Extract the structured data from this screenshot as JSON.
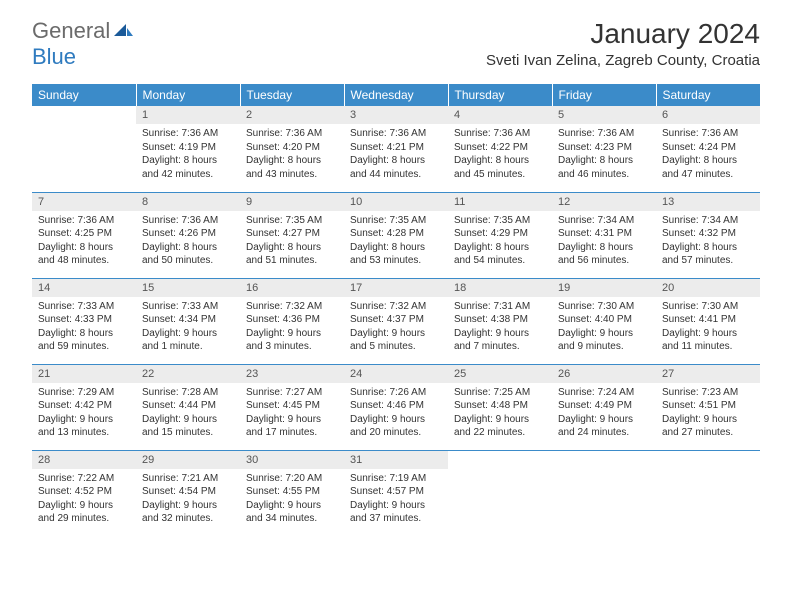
{
  "logo": {
    "general": "General",
    "blue": "Blue"
  },
  "title": "January 2024",
  "location": "Sveti Ivan Zelina, Zagreb County, Croatia",
  "colors": {
    "header_bg": "#3b8bc9",
    "header_text": "#ffffff",
    "daynum_bg": "#ececec",
    "border": "#3b8bc9",
    "text": "#333333",
    "logo_gray": "#6b6b6b",
    "logo_blue": "#2f7bbf"
  },
  "weekdays": [
    "Sunday",
    "Monday",
    "Tuesday",
    "Wednesday",
    "Thursday",
    "Friday",
    "Saturday"
  ],
  "weeks": [
    [
      null,
      {
        "n": "1",
        "sr": "Sunrise: 7:36 AM",
        "ss": "Sunset: 4:19 PM",
        "d1": "Daylight: 8 hours",
        "d2": "and 42 minutes."
      },
      {
        "n": "2",
        "sr": "Sunrise: 7:36 AM",
        "ss": "Sunset: 4:20 PM",
        "d1": "Daylight: 8 hours",
        "d2": "and 43 minutes."
      },
      {
        "n": "3",
        "sr": "Sunrise: 7:36 AM",
        "ss": "Sunset: 4:21 PM",
        "d1": "Daylight: 8 hours",
        "d2": "and 44 minutes."
      },
      {
        "n": "4",
        "sr": "Sunrise: 7:36 AM",
        "ss": "Sunset: 4:22 PM",
        "d1": "Daylight: 8 hours",
        "d2": "and 45 minutes."
      },
      {
        "n": "5",
        "sr": "Sunrise: 7:36 AM",
        "ss": "Sunset: 4:23 PM",
        "d1": "Daylight: 8 hours",
        "d2": "and 46 minutes."
      },
      {
        "n": "6",
        "sr": "Sunrise: 7:36 AM",
        "ss": "Sunset: 4:24 PM",
        "d1": "Daylight: 8 hours",
        "d2": "and 47 minutes."
      }
    ],
    [
      {
        "n": "7",
        "sr": "Sunrise: 7:36 AM",
        "ss": "Sunset: 4:25 PM",
        "d1": "Daylight: 8 hours",
        "d2": "and 48 minutes."
      },
      {
        "n": "8",
        "sr": "Sunrise: 7:36 AM",
        "ss": "Sunset: 4:26 PM",
        "d1": "Daylight: 8 hours",
        "d2": "and 50 minutes."
      },
      {
        "n": "9",
        "sr": "Sunrise: 7:35 AM",
        "ss": "Sunset: 4:27 PM",
        "d1": "Daylight: 8 hours",
        "d2": "and 51 minutes."
      },
      {
        "n": "10",
        "sr": "Sunrise: 7:35 AM",
        "ss": "Sunset: 4:28 PM",
        "d1": "Daylight: 8 hours",
        "d2": "and 53 minutes."
      },
      {
        "n": "11",
        "sr": "Sunrise: 7:35 AM",
        "ss": "Sunset: 4:29 PM",
        "d1": "Daylight: 8 hours",
        "d2": "and 54 minutes."
      },
      {
        "n": "12",
        "sr": "Sunrise: 7:34 AM",
        "ss": "Sunset: 4:31 PM",
        "d1": "Daylight: 8 hours",
        "d2": "and 56 minutes."
      },
      {
        "n": "13",
        "sr": "Sunrise: 7:34 AM",
        "ss": "Sunset: 4:32 PM",
        "d1": "Daylight: 8 hours",
        "d2": "and 57 minutes."
      }
    ],
    [
      {
        "n": "14",
        "sr": "Sunrise: 7:33 AM",
        "ss": "Sunset: 4:33 PM",
        "d1": "Daylight: 8 hours",
        "d2": "and 59 minutes."
      },
      {
        "n": "15",
        "sr": "Sunrise: 7:33 AM",
        "ss": "Sunset: 4:34 PM",
        "d1": "Daylight: 9 hours",
        "d2": "and 1 minute."
      },
      {
        "n": "16",
        "sr": "Sunrise: 7:32 AM",
        "ss": "Sunset: 4:36 PM",
        "d1": "Daylight: 9 hours",
        "d2": "and 3 minutes."
      },
      {
        "n": "17",
        "sr": "Sunrise: 7:32 AM",
        "ss": "Sunset: 4:37 PM",
        "d1": "Daylight: 9 hours",
        "d2": "and 5 minutes."
      },
      {
        "n": "18",
        "sr": "Sunrise: 7:31 AM",
        "ss": "Sunset: 4:38 PM",
        "d1": "Daylight: 9 hours",
        "d2": "and 7 minutes."
      },
      {
        "n": "19",
        "sr": "Sunrise: 7:30 AM",
        "ss": "Sunset: 4:40 PM",
        "d1": "Daylight: 9 hours",
        "d2": "and 9 minutes."
      },
      {
        "n": "20",
        "sr": "Sunrise: 7:30 AM",
        "ss": "Sunset: 4:41 PM",
        "d1": "Daylight: 9 hours",
        "d2": "and 11 minutes."
      }
    ],
    [
      {
        "n": "21",
        "sr": "Sunrise: 7:29 AM",
        "ss": "Sunset: 4:42 PM",
        "d1": "Daylight: 9 hours",
        "d2": "and 13 minutes."
      },
      {
        "n": "22",
        "sr": "Sunrise: 7:28 AM",
        "ss": "Sunset: 4:44 PM",
        "d1": "Daylight: 9 hours",
        "d2": "and 15 minutes."
      },
      {
        "n": "23",
        "sr": "Sunrise: 7:27 AM",
        "ss": "Sunset: 4:45 PM",
        "d1": "Daylight: 9 hours",
        "d2": "and 17 minutes."
      },
      {
        "n": "24",
        "sr": "Sunrise: 7:26 AM",
        "ss": "Sunset: 4:46 PM",
        "d1": "Daylight: 9 hours",
        "d2": "and 20 minutes."
      },
      {
        "n": "25",
        "sr": "Sunrise: 7:25 AM",
        "ss": "Sunset: 4:48 PM",
        "d1": "Daylight: 9 hours",
        "d2": "and 22 minutes."
      },
      {
        "n": "26",
        "sr": "Sunrise: 7:24 AM",
        "ss": "Sunset: 4:49 PM",
        "d1": "Daylight: 9 hours",
        "d2": "and 24 minutes."
      },
      {
        "n": "27",
        "sr": "Sunrise: 7:23 AM",
        "ss": "Sunset: 4:51 PM",
        "d1": "Daylight: 9 hours",
        "d2": "and 27 minutes."
      }
    ],
    [
      {
        "n": "28",
        "sr": "Sunrise: 7:22 AM",
        "ss": "Sunset: 4:52 PM",
        "d1": "Daylight: 9 hours",
        "d2": "and 29 minutes."
      },
      {
        "n": "29",
        "sr": "Sunrise: 7:21 AM",
        "ss": "Sunset: 4:54 PM",
        "d1": "Daylight: 9 hours",
        "d2": "and 32 minutes."
      },
      {
        "n": "30",
        "sr": "Sunrise: 7:20 AM",
        "ss": "Sunset: 4:55 PM",
        "d1": "Daylight: 9 hours",
        "d2": "and 34 minutes."
      },
      {
        "n": "31",
        "sr": "Sunrise: 7:19 AM",
        "ss": "Sunset: 4:57 PM",
        "d1": "Daylight: 9 hours",
        "d2": "and 37 minutes."
      },
      null,
      null,
      null
    ]
  ]
}
